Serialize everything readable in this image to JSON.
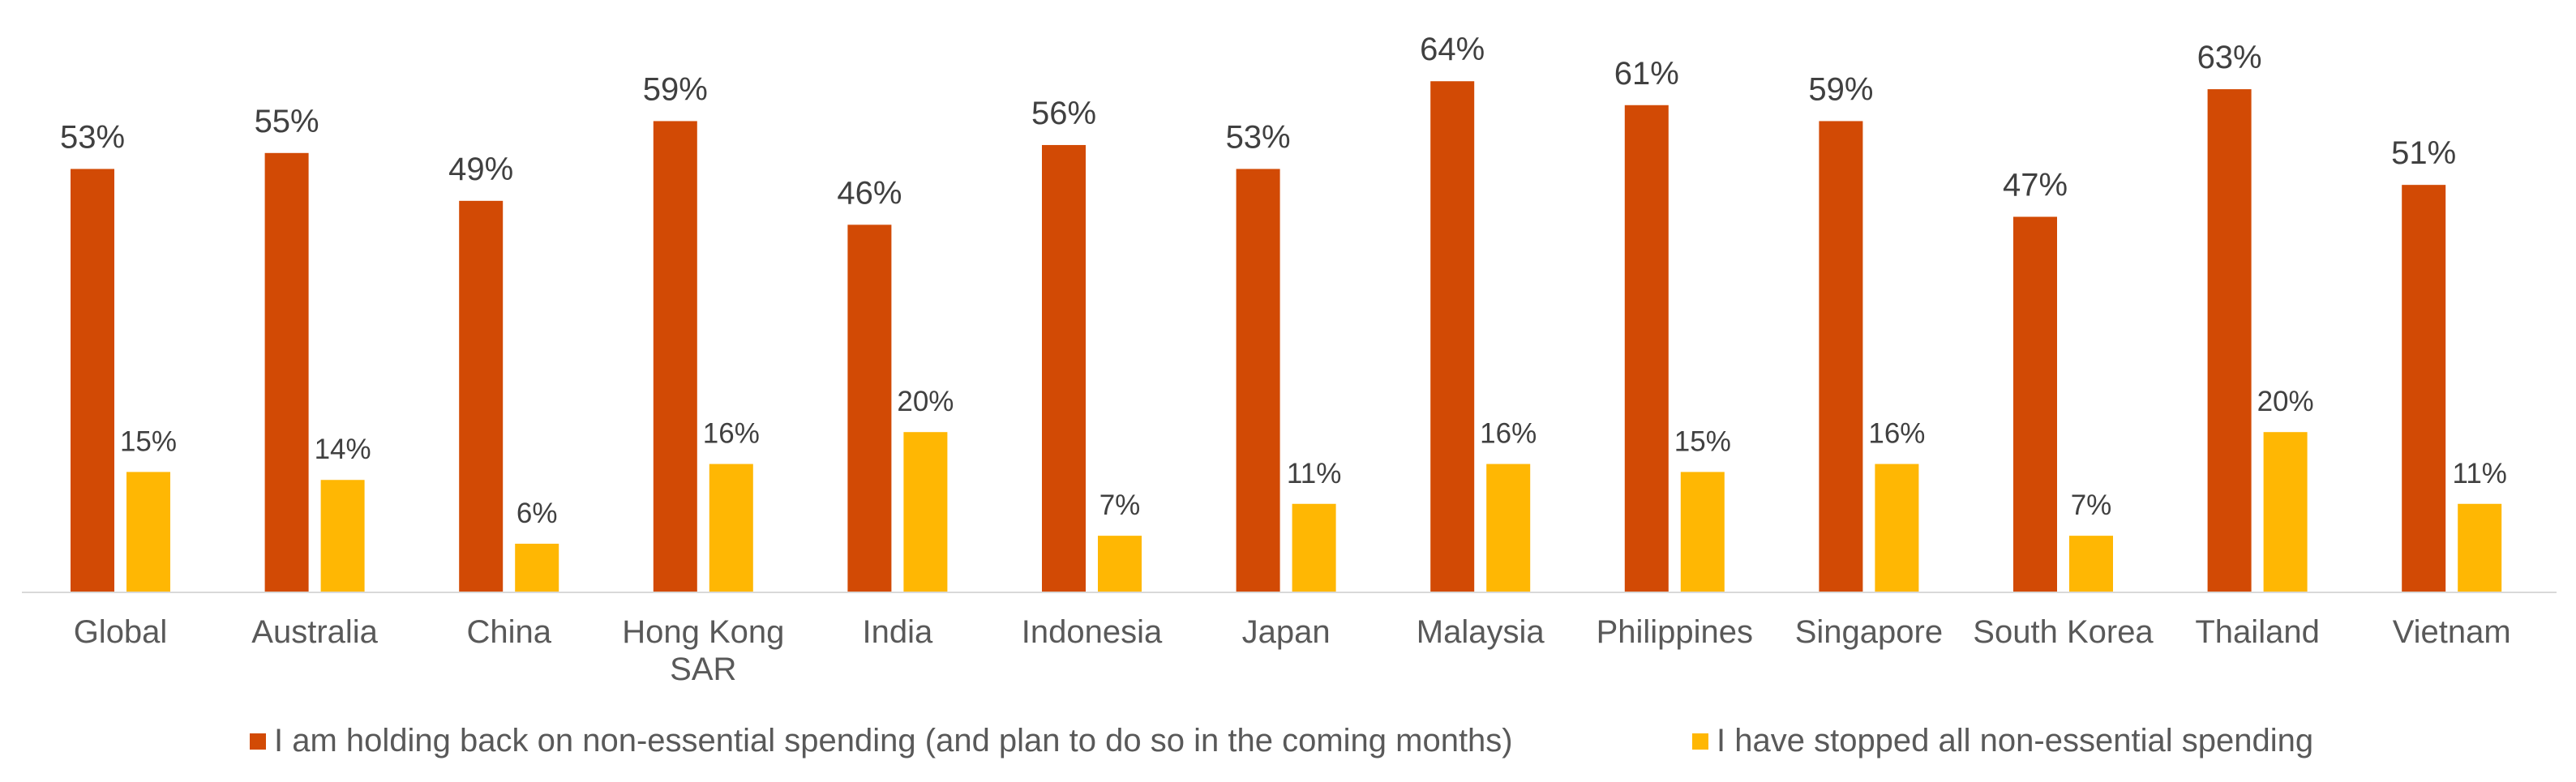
{
  "chart_data": {
    "type": "bar",
    "categories": [
      "Global",
      "Australia",
      "China",
      "Hong Kong SAR",
      "India",
      "Indonesia",
      "Japan",
      "Malaysia",
      "Philippines",
      "Singapore",
      "South Korea",
      "Thailand",
      "Vietnam"
    ],
    "category_lines": [
      [
        "Global"
      ],
      [
        "Australia"
      ],
      [
        "China"
      ],
      [
        "Hong Kong",
        "SAR"
      ],
      [
        "India"
      ],
      [
        "Indonesia"
      ],
      [
        "Japan"
      ],
      [
        "Malaysia"
      ],
      [
        "Philippines"
      ],
      [
        "Singapore"
      ],
      [
        "South Korea"
      ],
      [
        "Thailand"
      ],
      [
        "Vietnam"
      ]
    ],
    "series": [
      {
        "name": "I am holding back on non-essential spending (and plan to do so in the coming months)",
        "values": [
          53,
          55,
          49,
          59,
          46,
          56,
          53,
          64,
          61,
          59,
          47,
          63,
          51
        ],
        "labels": [
          "53%",
          "55%",
          "49%",
          "59%",
          "46%",
          "56%",
          "53%",
          "64%",
          "61%",
          "59%",
          "47%",
          "63%",
          "51%"
        ],
        "color": "#d24a05"
      },
      {
        "name": "I have stopped all non-essential spending",
        "values": [
          15,
          14,
          6,
          16,
          20,
          7,
          11,
          16,
          15,
          16,
          7,
          20,
          11
        ],
        "labels": [
          "15%",
          "14%",
          "6%",
          "16%",
          "20%",
          "7%",
          "11%",
          "16%",
          "15%",
          "16%",
          "7%",
          "20%",
          "11%"
        ],
        "color": "#ffb703"
      }
    ],
    "ylim": [
      0,
      64
    ],
    "grid": false,
    "legend_position": "bottom",
    "axis_color": "#d9d9d9",
    "label_color": "#404040",
    "category_color": "#595959"
  }
}
